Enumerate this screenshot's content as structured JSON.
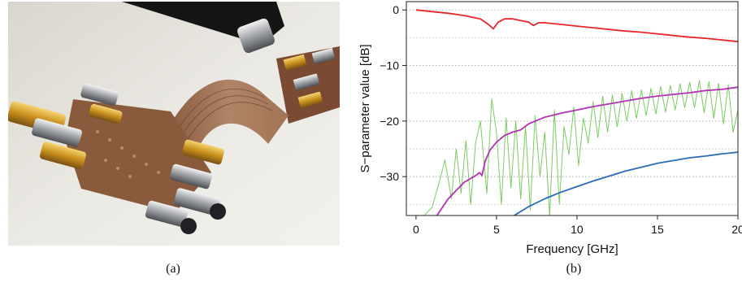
{
  "captions": {
    "a": "(a)",
    "b": "(b)"
  },
  "photo": {
    "icon": "pcb-test-fixture-photo"
  },
  "chart_data": {
    "type": "line",
    "xlabel": "Frequency [GHz]",
    "ylabel": "S−parameter value [dB]",
    "xlim": [
      -0.6,
      20
    ],
    "ylim": [
      -37,
      1.5
    ],
    "xticks": [
      0,
      5,
      10,
      15,
      20
    ],
    "xtick_labels": [
      "0",
      "5",
      "10",
      "15",
      "20"
    ],
    "yticks": [
      0,
      -10,
      -20,
      -30
    ],
    "ytick_labels": [
      "0",
      "−10",
      "−20",
      "−30"
    ],
    "grid": "horizontal dotted",
    "legend": "none",
    "series": [
      {
        "color": "#e8262a",
        "x": [
          0,
          1,
          2,
          3,
          4,
          4.5,
          4.8,
          5.1,
          5.5,
          6,
          6.5,
          7,
          7.3,
          7.6,
          8,
          9,
          10,
          11,
          12,
          13,
          14,
          15,
          16,
          17,
          18,
          19,
          20
        ],
        "y": [
          0,
          -0.3,
          -0.6,
          -1.0,
          -1.6,
          -2.6,
          -3.4,
          -2.2,
          -1.6,
          -1.6,
          -1.9,
          -2.2,
          -2.8,
          -2.3,
          -2.3,
          -2.6,
          -2.9,
          -3.2,
          -3.5,
          -3.8,
          -4.0,
          -4.3,
          -4.6,
          -4.9,
          -5.1,
          -5.4,
          -5.7
        ]
      },
      {
        "color": "#b62fb7",
        "x": [
          1.3,
          2,
          3,
          3.6,
          3.95,
          4.1,
          4.3,
          4.6,
          5,
          5.5,
          6,
          6.5,
          7,
          8,
          9,
          10,
          11,
          12,
          13,
          14,
          15,
          16,
          17,
          18,
          19,
          20
        ],
        "y": [
          -37,
          -34,
          -31,
          -30,
          -29.3,
          -29.8,
          -27.2,
          -25.2,
          -23.8,
          -22.6,
          -22.0,
          -21.6,
          -20.5,
          -19.3,
          -18.6,
          -18.0,
          -17.4,
          -16.9,
          -16.4,
          -15.9,
          -15.5,
          -15.2,
          -14.9,
          -14.5,
          -14.3,
          -13.9
        ]
      },
      {
        "color": "#2b6cb8",
        "x": [
          6.1,
          7,
          8,
          9,
          10,
          11,
          12,
          13,
          14,
          15,
          16,
          17,
          18,
          19,
          20
        ],
        "y": [
          -37,
          -35.4,
          -34.0,
          -32.8,
          -31.8,
          -30.8,
          -29.9,
          -29.0,
          -28.3,
          -27.6,
          -27.1,
          -26.6,
          -26.3,
          -25.9,
          -25.6
        ]
      },
      {
        "color": "#7ccb62",
        "x": [
          0,
          0.5,
          1,
          1.4,
          1.8,
          2.2,
          2.5,
          2.8,
          3.1,
          3.4,
          3.7,
          4.0,
          4.4,
          4.7,
          5.0,
          5.3,
          5.6,
          5.9,
          6.2,
          6.5,
          6.8,
          7.1,
          7.4,
          7.7,
          8.0,
          8.3,
          8.6,
          8.9,
          9.2,
          9.5,
          9.8,
          10.1,
          10.4,
          10.7,
          11.0,
          11.3,
          11.6,
          11.9,
          12.2,
          12.5,
          12.8,
          13.1,
          13.4,
          13.7,
          14.0,
          14.3,
          14.6,
          14.9,
          15.2,
          15.5,
          15.8,
          16.1,
          16.4,
          16.7,
          17.0,
          17.3,
          17.6,
          17.9,
          18.2,
          18.5,
          18.8,
          19.1,
          19.4,
          19.7,
          20
        ],
        "y": [
          -37,
          -37,
          -35.5,
          -31.5,
          -27,
          -34,
          -25,
          -33,
          -23.5,
          -35,
          -24,
          -20,
          -33,
          -16,
          -22,
          -35,
          -19.5,
          -32,
          -20,
          -34,
          -21,
          -36,
          -19,
          -30,
          -22,
          -37,
          -18,
          -35,
          -21,
          -26,
          -17.5,
          -28,
          -19.5,
          -24,
          -16.5,
          -23,
          -15.5,
          -22,
          -15.3,
          -21,
          -15.0,
          -20,
          -14.5,
          -19.5,
          -14.4,
          -19.0,
          -14.1,
          -18.7,
          -13.8,
          -18.4,
          -13.6,
          -18.0,
          -13.3,
          -17.6,
          -13.0,
          -17.6,
          -12.7,
          -18.5,
          -12.9,
          -19.5,
          -13.2,
          -20.5,
          -13.4,
          -22,
          -18
        ]
      }
    ]
  }
}
